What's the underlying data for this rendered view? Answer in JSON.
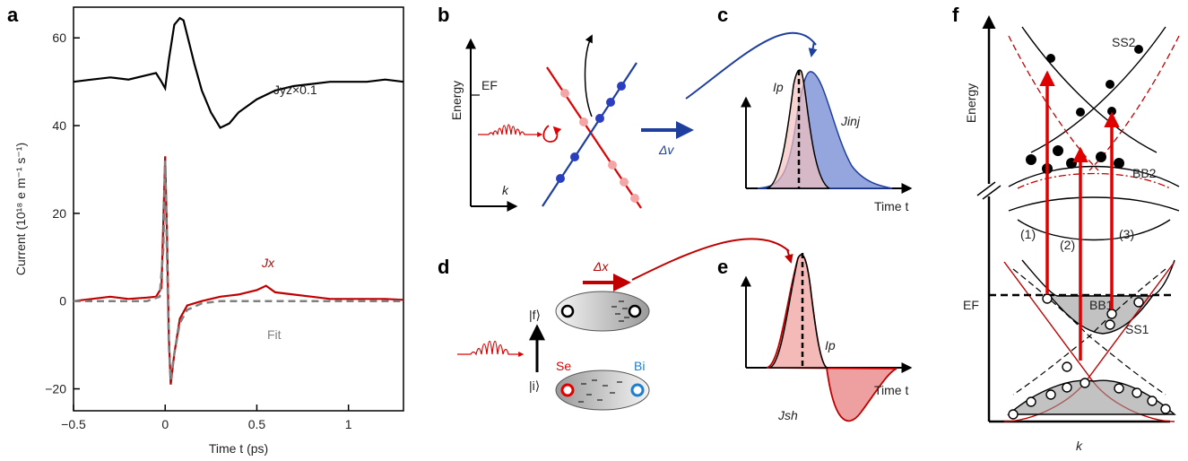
{
  "panels": {
    "a": "a",
    "b": "b",
    "c": "c",
    "d": "d",
    "e": "e",
    "f": "f"
  },
  "chart_data": {
    "type": "line",
    "xlabel": "Time t  (ps)",
    "ylabel": "Current  (10¹⁸ e m⁻¹ s⁻¹)",
    "xlim": [
      -0.5,
      1.3
    ],
    "ylim": [
      -25,
      67
    ],
    "xticks": [
      -0.5,
      0,
      0.5,
      1
    ],
    "xtick_labels": [
      "−0.5",
      "0",
      "0.5",
      "1"
    ],
    "yticks": [
      -20,
      0,
      20,
      40,
      60
    ],
    "ytick_labels": [
      "−20",
      "0",
      "20",
      "40",
      "60"
    ],
    "series": [
      {
        "name": "Jyz×0.1",
        "color": "#000000",
        "x": [
          -0.5,
          -0.4,
          -0.3,
          -0.2,
          -0.1,
          -0.05,
          -0.02,
          0.0,
          0.02,
          0.05,
          0.08,
          0.1,
          0.13,
          0.16,
          0.2,
          0.25,
          0.3,
          0.35,
          0.4,
          0.5,
          0.6,
          0.7,
          0.8,
          0.9,
          1.0,
          1.1,
          1.2,
          1.3
        ],
        "y": [
          50,
          50.5,
          51,
          50.5,
          51.5,
          52,
          50,
          48.5,
          55,
          63,
          64.5,
          64,
          59,
          54,
          48,
          43,
          39.5,
          40.5,
          43,
          46,
          48,
          49,
          49.5,
          50,
          50,
          50,
          50.5,
          50
        ]
      },
      {
        "name": "Jx",
        "color": "#c00000",
        "x": [
          -0.5,
          -0.4,
          -0.3,
          -0.2,
          -0.1,
          -0.05,
          -0.02,
          0.0,
          0.01,
          0.02,
          0.03,
          0.05,
          0.08,
          0.12,
          0.2,
          0.3,
          0.4,
          0.5,
          0.55,
          0.6,
          0.7,
          0.8,
          0.9,
          1.0,
          1.1,
          1.2,
          1.3
        ],
        "y": [
          0,
          0.5,
          1,
          0.5,
          0.8,
          1,
          3,
          33,
          15,
          -8,
          -19,
          -12,
          -4,
          -1,
          0,
          1,
          1.5,
          2.5,
          3.5,
          2,
          1.5,
          1,
          0.5,
          0.5,
          0.5,
          0.5,
          0.3
        ]
      },
      {
        "name": "Fit",
        "color": "#808080",
        "x": [
          -0.5,
          -0.1,
          -0.03,
          -0.01,
          0.0,
          0.01,
          0.02,
          0.03,
          0.05,
          0.08,
          0.12,
          0.2,
          0.3,
          0.6,
          1.3
        ],
        "y": [
          0,
          0,
          1,
          12,
          32,
          10,
          -10,
          -18,
          -12,
          -5,
          -2,
          -0.5,
          0,
          0,
          0
        ]
      }
    ],
    "annotations": [
      "Jyz×0.1",
      "Jx",
      "Fit"
    ]
  },
  "panel_b": {
    "energy_label": "Energy",
    "ef_label": "EF",
    "k_label": "k",
    "dv_label": "Δv"
  },
  "panel_c": {
    "ip_label": "Ip",
    "jinj_label": "Jinj",
    "time_label": "Time t"
  },
  "panel_d": {
    "dx_label": "Δx",
    "f_label": "|f⟩",
    "i_label": "|i⟩",
    "se_label": "Se",
    "bi_label": "Bi"
  },
  "panel_e": {
    "ip_label": "Ip",
    "jsh_label": "Jsh",
    "time_label": "Time t"
  },
  "panel_f": {
    "energy_label": "Energy",
    "k_label": "k",
    "ef_label": "EF",
    "ss2": "SS2",
    "bb2": "BB2",
    "bb1": "BB1",
    "ss1": "SS1",
    "t1": "(1)",
    "t2": "(2)",
    "t3": "(3)"
  },
  "colors": {
    "red": "#c00000",
    "blue": "#1f3f9f",
    "gray": "#808080"
  }
}
